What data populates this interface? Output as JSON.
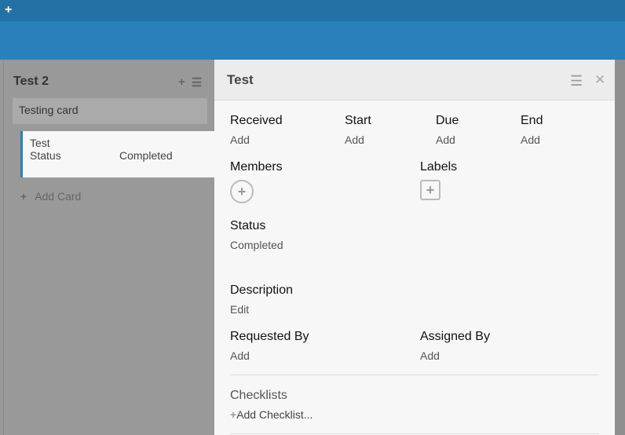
{
  "topbar": {
    "add_icon": "plus-icon"
  },
  "list": {
    "title": "Test 2",
    "cards": [
      {
        "title": "Testing card"
      },
      {
        "title": "Test",
        "field": "Status",
        "value": "Completed"
      }
    ],
    "add_card": "Add Card"
  },
  "detail": {
    "title": "Test",
    "dates": [
      {
        "label": "Received",
        "value": "Add"
      },
      {
        "label": "Start",
        "value": "Add"
      },
      {
        "label": "Due",
        "value": "Add"
      },
      {
        "label": "End",
        "value": "Add"
      }
    ],
    "members_label": "Members",
    "labels_label": "Labels",
    "status_label": "Status",
    "status_value": "Completed",
    "description_label": "Description",
    "description_edit": "Edit",
    "requested_by_label": "Requested By",
    "requested_by_value": "Add",
    "assigned_by_label": "Assigned By",
    "assigned_by_value": "Add",
    "checklists_label": "Checklists",
    "add_checklist": "Add Checklist..."
  },
  "colors": {
    "accent": "#2980ba",
    "topbar": "#2471a6"
  }
}
